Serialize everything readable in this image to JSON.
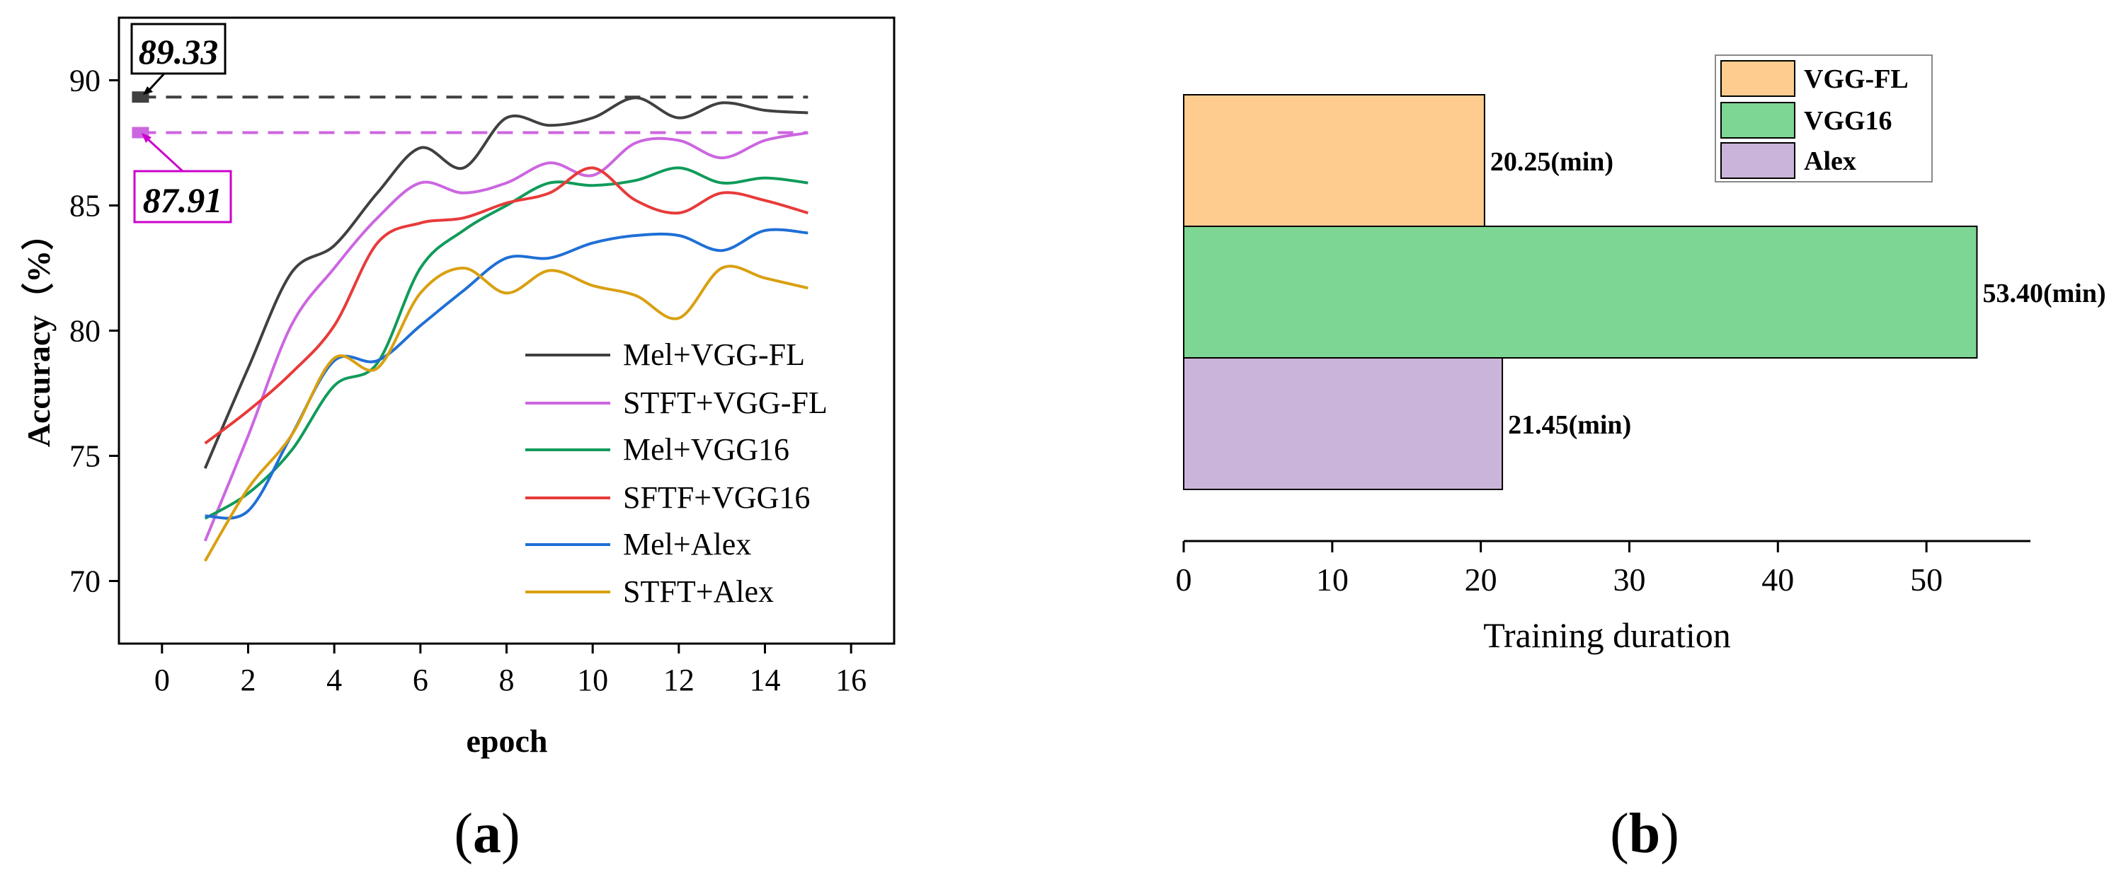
{
  "chart_data": [
    {
      "id": "a",
      "type": "line",
      "panel_label_open": "(",
      "panel_label_letter": "a",
      "panel_label_close": ")",
      "xlabel": "epoch",
      "ylabel": "Accuracy（%）",
      "xlim": [
        -1,
        17
      ],
      "ylim": [
        67.5,
        92.5
      ],
      "xticks": [
        0,
        2,
        4,
        6,
        8,
        10,
        12,
        14,
        16
      ],
      "yticks": [
        70,
        75,
        80,
        85,
        90
      ],
      "x": [
        1,
        2,
        3,
        4,
        5,
        6,
        7,
        8,
        9,
        10,
        11,
        12,
        13,
        14,
        15
      ],
      "series": [
        {
          "name": "Mel+VGG-FL",
          "color": "#404040",
          "values": [
            74.5,
            78.5,
            82.3,
            83.4,
            85.5,
            87.3,
            86.5,
            88.5,
            88.2,
            88.5,
            89.3,
            88.5,
            89.1,
            88.8,
            88.7
          ]
        },
        {
          "name": "STFT+VGG-FL",
          "color": "#cc66e0",
          "values": [
            71.6,
            75.8,
            80.2,
            82.5,
            84.5,
            85.9,
            85.5,
            85.9,
            86.7,
            86.2,
            87.5,
            87.6,
            86.9,
            87.6,
            87.9
          ]
        },
        {
          "name": "Mel+VGG16",
          "color": "#109b5a",
          "values": [
            72.5,
            73.5,
            75.2,
            77.8,
            78.7,
            82.5,
            84.0,
            85.0,
            85.9,
            85.8,
            86.0,
            86.5,
            85.9,
            86.1,
            85.9
          ]
        },
        {
          "name": "SFTF+VGG16",
          "color": "#e83a3a",
          "values": [
            75.5,
            76.8,
            78.3,
            80.2,
            83.5,
            84.3,
            84.5,
            85.1,
            85.5,
            86.5,
            85.2,
            84.7,
            85.5,
            85.2,
            84.7
          ]
        },
        {
          "name": "Mel+Alex",
          "color": "#1f6fd6",
          "values": [
            72.6,
            72.8,
            75.8,
            78.8,
            78.8,
            80.2,
            81.6,
            82.9,
            82.9,
            83.5,
            83.8,
            83.8,
            83.2,
            84.0,
            83.9
          ]
        },
        {
          "name": "STFT+Alex",
          "color": "#d9a010",
          "values": [
            70.8,
            73.7,
            75.8,
            78.9,
            78.5,
            81.5,
            82.5,
            81.5,
            82.4,
            81.8,
            81.4,
            80.5,
            82.5,
            82.1,
            81.7
          ]
        }
      ],
      "reference_lines": [
        {
          "value": 89.33,
          "label": "89.33",
          "color": "#404040"
        },
        {
          "value": 87.91,
          "label": "87.91",
          "color": "#cc66e0"
        }
      ],
      "legend_position": "lower-right"
    },
    {
      "id": "b",
      "type": "bar",
      "orientation": "horizontal",
      "panel_label_open": "(",
      "panel_label_letter": "b",
      "panel_label_close": ")",
      "xlabel": "Training duration",
      "xlim": [
        0,
        57
      ],
      "xticks": [
        0,
        10,
        20,
        30,
        40,
        50
      ],
      "categories": [
        "VGG-FL",
        "VGG16",
        "Alex"
      ],
      "values": [
        20.25,
        53.4,
        21.45
      ],
      "data_labels": [
        "20.25(min)",
        "53.40(min)",
        "21.45(min)"
      ],
      "colors": [
        "#ffcc8f",
        "#7dd693",
        "#cbb4d9"
      ],
      "legend_position": "top-right"
    }
  ]
}
